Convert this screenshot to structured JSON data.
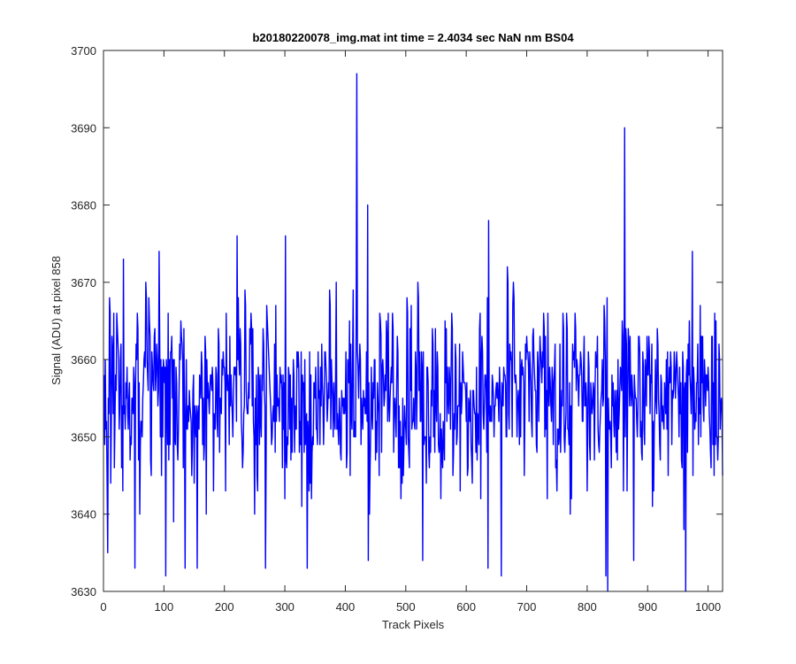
{
  "chart_data": {
    "type": "line",
    "title": "b20180220078_img.mat int time = 2.4034 sec  NaN nm BS04",
    "xlabel": "Track Pixels",
    "ylabel": "Signal (ADU) at pixel 858",
    "xlim": [
      0,
      1024
    ],
    "ylim": [
      3630,
      3700
    ],
    "xticks": [
      0,
      100,
      200,
      300,
      400,
      500,
      600,
      700,
      800,
      900,
      1000
    ],
    "yticks": [
      3630,
      3640,
      3650,
      3660,
      3670,
      3680,
      3690,
      3700
    ],
    "grid": false,
    "box": true,
    "line_color": "#0000ff",
    "series": [
      {
        "x_start": 1,
        "x_step": 1,
        "noise_mean": 3654,
        "noise_range": [
          3632,
          3676
        ],
        "values_note_peaks": [
          {
            "x": 7,
            "y": 3635
          },
          {
            "x": 33,
            "y": 3673
          },
          {
            "x": 52,
            "y": 3633
          },
          {
            "x": 92,
            "y": 3674
          },
          {
            "x": 103,
            "y": 3632
          },
          {
            "x": 135,
            "y": 3633
          },
          {
            "x": 155,
            "y": 3633
          },
          {
            "x": 221,
            "y": 3676
          },
          {
            "x": 268,
            "y": 3633
          },
          {
            "x": 301,
            "y": 3676
          },
          {
            "x": 337,
            "y": 3633
          },
          {
            "x": 419,
            "y": 3697
          },
          {
            "x": 437,
            "y": 3680
          },
          {
            "x": 438,
            "y": 3634
          },
          {
            "x": 528,
            "y": 3634
          },
          {
            "x": 637,
            "y": 3678
          },
          {
            "x": 636,
            "y": 3633
          },
          {
            "x": 658,
            "y": 3632
          },
          {
            "x": 831,
            "y": 3632
          },
          {
            "x": 834,
            "y": 3630
          },
          {
            "x": 862,
            "y": 3690
          },
          {
            "x": 877,
            "y": 3634
          },
          {
            "x": 960,
            "y": 3638
          },
          {
            "x": 963,
            "y": 3630
          },
          {
            "x": 974,
            "y": 3674
          }
        ]
      }
    ]
  }
}
